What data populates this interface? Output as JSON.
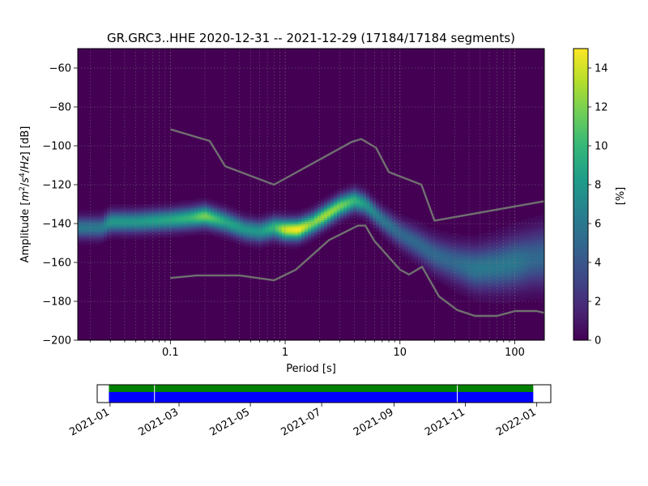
{
  "chart_data": [
    {
      "type": "heatmap",
      "title": "GR.GRC3..HHE   2020-12-31 -- 2021-12-29  (17184/17184 segments)",
      "xlabel": "Period [s]",
      "ylabel": "Amplitude [$m^2/s^4/Hz$] [dB]",
      "x_scale": "log",
      "xlim": [
        0.0156,
        181
      ],
      "ylim": [
        -200,
        -50
      ],
      "x_ticks": [
        {
          "value": 0.1,
          "label": "0.1"
        },
        {
          "value": 1,
          "label": "1"
        },
        {
          "value": 10,
          "label": "10"
        },
        {
          "value": 100,
          "label": "100"
        }
      ],
      "y_ticks": [
        -60,
        -80,
        -100,
        -120,
        -140,
        -160,
        -180,
        -200
      ],
      "grid": true,
      "colormap": "viridis",
      "colorbar": {
        "label": "[%]",
        "range": [
          0,
          15
        ],
        "ticks": [
          0,
          2,
          4,
          6,
          8,
          10,
          12,
          14
        ]
      },
      "density_ridge": {
        "period": [
          0.0156,
          0.025,
          0.03,
          0.05,
          0.1,
          0.15,
          0.2,
          0.3,
          0.45,
          0.6,
          0.8,
          1.0,
          1.3,
          1.7,
          2.2,
          3.0,
          4.0,
          5.0,
          7.0,
          10,
          14,
          20,
          30,
          45,
          70,
          100,
          140,
          181
        ],
        "amplitude_db": [
          -142,
          -142,
          -139,
          -139,
          -138,
          -137,
          -136,
          -139,
          -143,
          -144,
          -142,
          -143,
          -143,
          -140,
          -136,
          -131,
          -128,
          -130,
          -138,
          -145,
          -150,
          -156,
          -160,
          -163,
          -162,
          -160,
          -158,
          -157
        ],
        "peak_percent": [
          6,
          6,
          8,
          8,
          9,
          10,
          12,
          9,
          8,
          8,
          10,
          14,
          15,
          12,
          13,
          12,
          10,
          8,
          6,
          5,
          5,
          5,
          5,
          6,
          6,
          6,
          5,
          5
        ]
      },
      "series": [
        {
          "x": [
            0.1,
            0.22,
            0.3,
            0.8,
            3.8,
            4.6,
            6.2,
            8.0,
            15.4,
            20,
            181
          ],
          "y": [
            -91.5,
            -97.5,
            -110.5,
            -120,
            -98,
            -96.5,
            -101,
            -113.5,
            -120,
            -138.5,
            -128.5
          ],
          "color": "#707070"
        },
        {
          "x": [
            0.1,
            0.17,
            0.4,
            0.8,
            1.24,
            2.4,
            4.3,
            5.0,
            6.0,
            10,
            12,
            15.6,
            21.9,
            31.6,
            45,
            70,
            101,
            154,
            181
          ],
          "y": [
            -168,
            -166.7,
            -166.7,
            -169.2,
            -163.7,
            -148.6,
            -141.1,
            -141.1,
            -149,
            -163.7,
            -166.2,
            -162.2,
            -177.5,
            -184.5,
            -187.5,
            -187.5,
            -185,
            -185,
            -185.9
          ],
          "color": "#707070"
        }
      ]
    },
    {
      "type": "timeline",
      "x_ticks": [
        "2021-01",
        "2021-03",
        "2021-05",
        "2021-07",
        "2021-09",
        "2021-11",
        "2022-01"
      ],
      "data_range": [
        "2020-12-31",
        "2021-12-29"
      ],
      "gap_dates": [
        "2021-02-08",
        "2021-10-25"
      ],
      "bar_colors": {
        "data": "#0000ff",
        "psd_used": "#008000",
        "gap_marker": "#ffffff"
      }
    }
  ]
}
